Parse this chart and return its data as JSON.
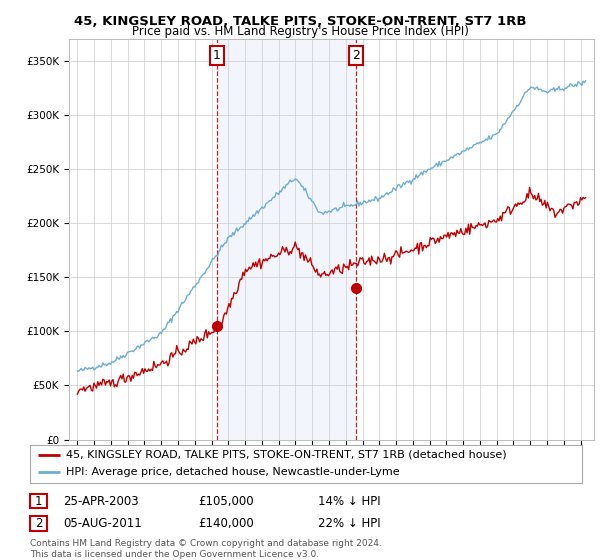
{
  "title": "45, KINGSLEY ROAD, TALKE PITS, STOKE-ON-TRENT, ST7 1RB",
  "subtitle": "Price paid vs. HM Land Registry's House Price Index (HPI)",
  "ylabel_ticks": [
    "£0",
    "£50K",
    "£100K",
    "£150K",
    "£200K",
    "£250K",
    "£300K",
    "£350K"
  ],
  "ytick_vals": [
    0,
    50000,
    100000,
    150000,
    200000,
    250000,
    300000,
    350000
  ],
  "ylim": [
    0,
    370000
  ],
  "xlim_start": 1994.5,
  "xlim_end": 2025.8,
  "hpi_color": "#6baed6",
  "price_color": "#c00000",
  "marker_color": "#c00000",
  "shade_color": "#d6e4f7",
  "event1_x": 2003.32,
  "event1_y": 105000,
  "event1_label": "1",
  "event2_x": 2011.59,
  "event2_y": 140000,
  "event2_label": "2",
  "legend_line1": "45, KINGSLEY ROAD, TALKE PITS, STOKE-ON-TRENT, ST7 1RB (detached house)",
  "legend_line2": "HPI: Average price, detached house, Newcastle-under-Lyme",
  "table_row1": [
    "1",
    "25-APR-2003",
    "£105,000",
    "14% ↓ HPI"
  ],
  "table_row2": [
    "2",
    "05-AUG-2011",
    "£140,000",
    "22% ↓ HPI"
  ],
  "footer": "Contains HM Land Registry data © Crown copyright and database right 2024.\nThis data is licensed under the Open Government Licence v3.0.",
  "title_fontsize": 9.5,
  "subtitle_fontsize": 8.5,
  "tick_fontsize": 7.5,
  "legend_fontsize": 8,
  "table_fontsize": 8.5,
  "footer_fontsize": 6.5,
  "background_color": "#ffffff",
  "plot_bg_color": "#ffffff",
  "grid_color": "#cccccc"
}
